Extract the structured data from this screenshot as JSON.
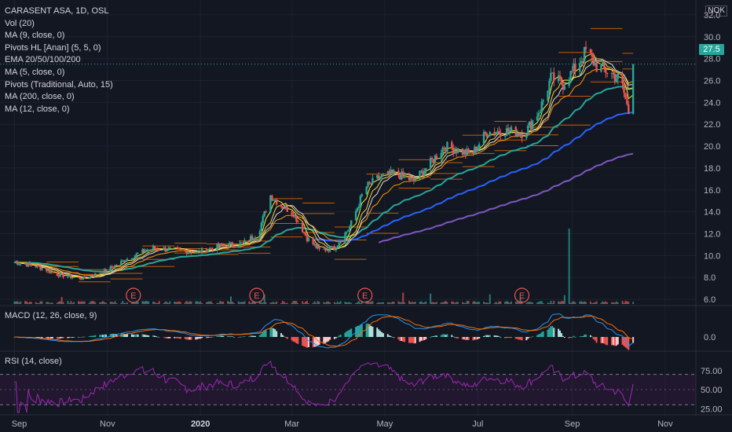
{
  "legend": {
    "title": "CARASENT ASA, 1D, OSL",
    "items": [
      "Vol (20)",
      "MA (9, close, 0)",
      "Pivots HL [Anan] (5, 5, 0)",
      "EMA 20/50/100/200",
      "MA (5, close, 0)",
      "Pivots (Traditional, Auto, 15)",
      "MA (200, close, 0)",
      "MA (12, close, 0)"
    ]
  },
  "macd_label": "MACD (12, 26, close, 9)",
  "rsi_label": "RSI (14, close)",
  "currency": "NOK",
  "last_price_label": "27.5",
  "price_axis": [
    "32.0",
    "30.0",
    "28.0",
    "26.0",
    "24.0",
    "22.0",
    "20.0",
    "18.0",
    "16.0",
    "14.0",
    "12.0",
    "10.0",
    "8.0",
    "6.0"
  ],
  "macd_axis": [
    "0.0"
  ],
  "rsi_axis": [
    "75.00",
    "50.00",
    "25.00"
  ],
  "time_axis": [
    {
      "label": "Sep",
      "bold": false
    },
    {
      "label": "Nov",
      "bold": false
    },
    {
      "label": "2020",
      "bold": true
    },
    {
      "label": "Mar",
      "bold": false
    },
    {
      "label": "May",
      "bold": false
    },
    {
      "label": "Jul",
      "bold": false
    },
    {
      "label": "Sep",
      "bold": false
    },
    {
      "label": "Nov",
      "bold": false
    }
  ],
  "earnings_marker": "E",
  "colors": {
    "up": "#26a69a",
    "down": "#ef5350",
    "ema50": "#26a69a",
    "ema100": "#2962ff",
    "ema200": "#7e57c2",
    "ma_short": "#f5d142",
    "ma_mid": "#e0e0e0",
    "ma_orange": "#ff9800",
    "pivot_r": "#ef6c00",
    "pivot_label": "#ff7043",
    "rsi": "#9c27b0",
    "macd": "#2196f3",
    "signal": "#ff6d00"
  },
  "chart_data": {
    "type": "candlestick",
    "symbol": "CARASENT ASA, 1D, OSL",
    "ylim": [
      5.0,
      32.0
    ],
    "last_price": 27.5,
    "months": [
      {
        "label": "Sep",
        "day": 0
      },
      {
        "label": "Nov",
        "day": 61
      },
      {
        "label": "2020",
        "day": 122
      },
      {
        "label": "Mar",
        "day": 182
      },
      {
        "label": "May",
        "day": 243
      },
      {
        "label": "Jul",
        "day": 304
      },
      {
        "label": "Sep",
        "day": 366
      },
      {
        "label": "Nov",
        "day": 427
      }
    ],
    "price_anchors": [
      [
        0,
        9.4
      ],
      [
        15,
        9.0
      ],
      [
        30,
        8.2
      ],
      [
        45,
        7.9
      ],
      [
        60,
        8.6
      ],
      [
        75,
        9.8
      ],
      [
        90,
        10.7
      ],
      [
        105,
        10.5
      ],
      [
        120,
        10.3
      ],
      [
        135,
        10.9
      ],
      [
        150,
        11.1
      ],
      [
        160,
        12.1
      ],
      [
        168,
        15.5
      ],
      [
        175,
        14.6
      ],
      [
        183,
        13.9
      ],
      [
        192,
        11.6
      ],
      [
        200,
        10.5
      ],
      [
        210,
        10.7
      ],
      [
        220,
        12.6
      ],
      [
        230,
        16.2
      ],
      [
        240,
        17.2
      ],
      [
        250,
        17.5
      ],
      [
        262,
        16.8
      ],
      [
        272,
        18.3
      ],
      [
        282,
        20.0
      ],
      [
        292,
        19.6
      ],
      [
        300,
        19.2
      ],
      [
        310,
        21.3
      ],
      [
        322,
        21.4
      ],
      [
        335,
        21.2
      ],
      [
        345,
        23.4
      ],
      [
        352,
        26.2
      ],
      [
        360,
        25.7
      ],
      [
        368,
        27.1
      ],
      [
        375,
        28.7
      ],
      [
        382,
        27.3
      ],
      [
        390,
        26.8
      ],
      [
        398,
        26.0
      ],
      [
        403,
        23.1
      ],
      [
        406,
        27.5
      ]
    ],
    "earnings_days": [
      78,
      159,
      230,
      333
    ],
    "volume_spike_day": 364
  }
}
